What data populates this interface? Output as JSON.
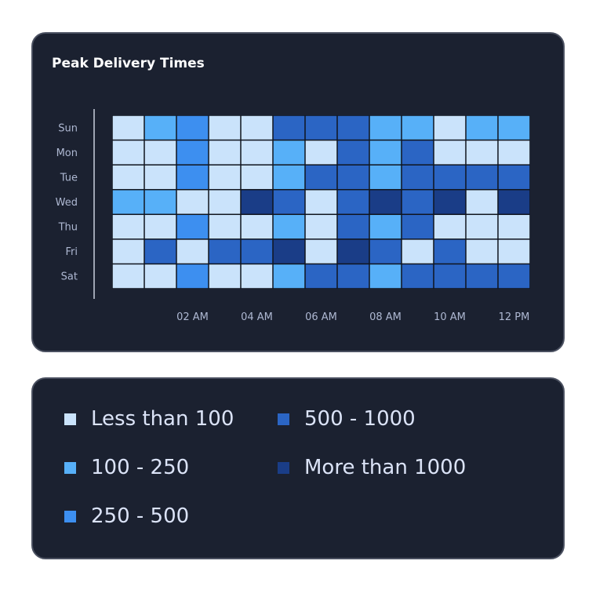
{
  "chart_data": {
    "type": "heatmap",
    "title": "Peak Delivery Times",
    "y_categories": [
      "Sun",
      "Mon",
      "Tue",
      "Wed",
      "Thu",
      "Fri",
      "Sat"
    ],
    "x_tick_labels": [
      "02 AM",
      "04 AM",
      "06 AM",
      "08 AM",
      "10 AM",
      "12 PM"
    ],
    "bins": [
      {
        "label": "Less than 100",
        "color": "#cae3fb"
      },
      {
        "label": "100 - 250",
        "color": "#57b0f8"
      },
      {
        "label": "250 - 500",
        "color": "#3d8ff0"
      },
      {
        "label": "500 - 1000",
        "color": "#2b65c4"
      },
      {
        "label": "More than 1000",
        "color": "#1a3d87"
      }
    ],
    "cell_bins": [
      [
        0,
        1,
        2,
        0,
        0,
        3,
        3,
        3,
        1,
        1,
        0,
        1,
        1
      ],
      [
        0,
        0,
        2,
        0,
        0,
        1,
        0,
        3,
        1,
        3,
        0,
        0,
        0
      ],
      [
        0,
        0,
        2,
        0,
        0,
        1,
        3,
        3,
        1,
        3,
        3,
        3,
        3
      ],
      [
        1,
        1,
        0,
        0,
        4,
        3,
        0,
        3,
        4,
        3,
        4,
        0,
        4
      ],
      [
        0,
        0,
        2,
        0,
        0,
        1,
        0,
        3,
        1,
        3,
        0,
        0,
        0
      ],
      [
        0,
        3,
        0,
        3,
        3,
        4,
        0,
        4,
        3,
        0,
        3,
        0,
        0
      ],
      [
        0,
        0,
        2,
        0,
        0,
        1,
        3,
        3,
        1,
        3,
        3,
        3,
        3
      ]
    ],
    "legend_placement": "below"
  }
}
